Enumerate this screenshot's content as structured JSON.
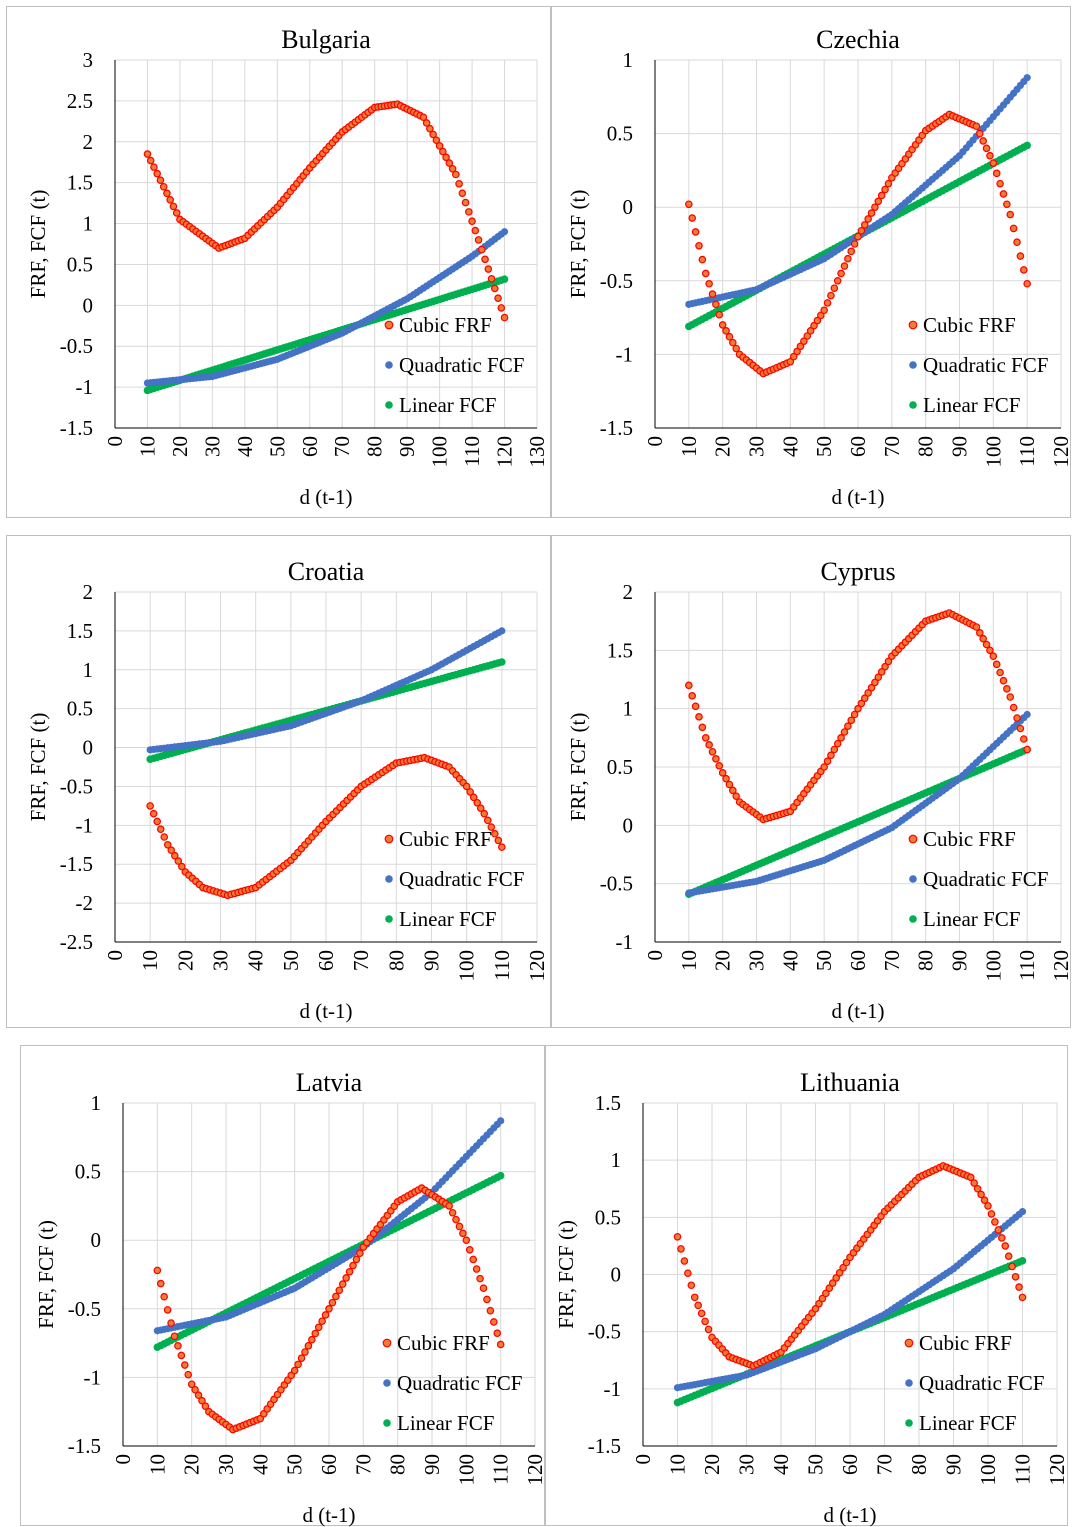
{
  "legend_labels": [
    "Cubic FRF",
    "Quadratic FCF",
    "Linear FCF"
  ],
  "colors": {
    "cubic_outline": "#ff0000",
    "cubic_fill": "#ed7d31",
    "quadratic": "#4472c4",
    "linear": "#00b050",
    "grid": "#d9d9d9",
    "axis": "#000000"
  },
  "chart_data": [
    {
      "type": "scatter",
      "title": "Bulgaria",
      "xlabel": "d (t-1)",
      "ylabel": "FRF, FCF (t)",
      "xlim": [
        0,
        130
      ],
      "ylim": [
        -1.5,
        3
      ],
      "x_ticks": [
        0,
        10,
        20,
        30,
        40,
        50,
        60,
        70,
        80,
        90,
        100,
        110,
        120,
        130
      ],
      "y_ticks": [
        -1.5,
        -1,
        -0.5,
        0,
        0.5,
        1,
        1.5,
        2,
        2.5,
        3
      ],
      "y_tick_labels": [
        "-1.5",
        "-1",
        "-0.5",
        "0",
        "0.5",
        "1",
        "1.5",
        "2",
        "2.5",
        "3"
      ],
      "x_range": [
        10,
        120
      ],
      "legend": "bottom-right",
      "series": [
        {
          "name": "Cubic FRF",
          "x": [
            10,
            20,
            32,
            40,
            50,
            60,
            70,
            80,
            87,
            95,
            105,
            112,
            120
          ],
          "y": [
            1.85,
            1.05,
            0.7,
            0.82,
            1.2,
            1.68,
            2.12,
            2.42,
            2.46,
            2.3,
            1.6,
            0.8,
            -0.15
          ]
        },
        {
          "name": "Quadratic FCF",
          "x": [
            10,
            30,
            50,
            70,
            90,
            110,
            120
          ],
          "y": [
            -0.95,
            -0.87,
            -0.66,
            -0.34,
            0.08,
            0.6,
            0.9
          ]
        },
        {
          "name": "Linear FCF",
          "x": [
            10,
            120
          ],
          "y": [
            -1.04,
            0.32
          ]
        }
      ]
    },
    {
      "type": "scatter",
      "title": "Czechia",
      "xlabel": "d (t-1)",
      "ylabel": "FRF, FCF (t)",
      "xlim": [
        0,
        120
      ],
      "ylim": [
        -1.5,
        1
      ],
      "x_ticks": [
        0,
        10,
        20,
        30,
        40,
        50,
        60,
        70,
        80,
        90,
        100,
        110,
        120
      ],
      "y_ticks": [
        -1.5,
        -1,
        -0.5,
        0,
        0.5,
        1
      ],
      "y_tick_labels": [
        "-1.5",
        "-1",
        "-0.5",
        "0",
        "0.5",
        "1"
      ],
      "x_range": [
        10,
        110
      ],
      "legend": "bottom-right",
      "series": [
        {
          "name": "Cubic FRF",
          "x": [
            10,
            15,
            20,
            25,
            32,
            40,
            50,
            60,
            70,
            80,
            87,
            95,
            100,
            105,
            110
          ],
          "y": [
            0.02,
            -0.45,
            -0.8,
            -1.0,
            -1.13,
            -1.05,
            -0.7,
            -0.2,
            0.2,
            0.52,
            0.63,
            0.55,
            0.3,
            -0.05,
            -0.52
          ]
        },
        {
          "name": "Quadratic FCF",
          "x": [
            10,
            30,
            50,
            70,
            90,
            110
          ],
          "y": [
            -0.66,
            -0.56,
            -0.35,
            -0.05,
            0.35,
            0.88
          ]
        },
        {
          "name": "Linear FCF",
          "x": [
            10,
            110
          ],
          "y": [
            -0.81,
            0.42
          ]
        }
      ]
    },
    {
      "type": "scatter",
      "title": "Croatia",
      "xlabel": "d (t-1)",
      "ylabel": "FRF, FCF (t)",
      "xlim": [
        0,
        120
      ],
      "ylim": [
        -2.5,
        2
      ],
      "x_ticks": [
        0,
        10,
        20,
        30,
        40,
        50,
        60,
        70,
        80,
        90,
        100,
        110,
        120
      ],
      "y_ticks": [
        -2.5,
        -2,
        -1.5,
        -1,
        -0.5,
        0,
        0.5,
        1,
        1.5,
        2
      ],
      "y_tick_labels": [
        "-2.5",
        "-2",
        "-1.5",
        "-1",
        "-0.5",
        "0",
        "0.5",
        "1",
        "1.5",
        "2"
      ],
      "x_range": [
        10,
        110
      ],
      "legend": "bottom-right",
      "series": [
        {
          "name": "Cubic FRF",
          "x": [
            10,
            15,
            20,
            25,
            32,
            40,
            50,
            60,
            70,
            80,
            88,
            95,
            100,
            105,
            110
          ],
          "y": [
            -0.75,
            -1.25,
            -1.6,
            -1.8,
            -1.9,
            -1.8,
            -1.45,
            -0.95,
            -0.5,
            -0.2,
            -0.13,
            -0.25,
            -0.5,
            -0.85,
            -1.28
          ]
        },
        {
          "name": "Quadratic FCF",
          "x": [
            10,
            30,
            50,
            70,
            90,
            110
          ],
          "y": [
            -0.03,
            0.08,
            0.28,
            0.6,
            1.0,
            1.5
          ]
        },
        {
          "name": "Linear FCF",
          "x": [
            10,
            110
          ],
          "y": [
            -0.15,
            1.1
          ]
        }
      ]
    },
    {
      "type": "scatter",
      "title": "Cyprus",
      "xlabel": "d (t-1)",
      "ylabel": "FRF, FCF (t)",
      "xlim": [
        0,
        120
      ],
      "ylim": [
        -1,
        2
      ],
      "x_ticks": [
        0,
        10,
        20,
        30,
        40,
        50,
        60,
        70,
        80,
        90,
        100,
        110,
        120
      ],
      "y_ticks": [
        -1,
        -0.5,
        0,
        0.5,
        1,
        1.5,
        2
      ],
      "y_tick_labels": [
        "-1",
        "-0.5",
        "0",
        "0.5",
        "1",
        "1.5",
        "2"
      ],
      "x_range": [
        10,
        110
      ],
      "legend": "bottom-right",
      "series": [
        {
          "name": "Cubic FRF",
          "x": [
            10,
            15,
            20,
            25,
            32,
            40,
            50,
            60,
            70,
            80,
            87,
            95,
            100,
            105,
            110
          ],
          "y": [
            1.2,
            0.75,
            0.45,
            0.2,
            0.05,
            0.12,
            0.5,
            1.0,
            1.45,
            1.75,
            1.82,
            1.7,
            1.45,
            1.1,
            0.65
          ]
        },
        {
          "name": "Quadratic FCF",
          "x": [
            10,
            30,
            50,
            70,
            90,
            110
          ],
          "y": [
            -0.58,
            -0.48,
            -0.3,
            -0.02,
            0.4,
            0.95
          ]
        },
        {
          "name": "Linear FCF",
          "x": [
            10,
            110
          ],
          "y": [
            -0.59,
            0.65
          ]
        }
      ]
    },
    {
      "type": "scatter",
      "title": "Latvia",
      "xlabel": "d (t-1)",
      "ylabel": "FRF, FCF (t)",
      "xlim": [
        0,
        120
      ],
      "ylim": [
        -1.5,
        1
      ],
      "x_ticks": [
        0,
        10,
        20,
        30,
        40,
        50,
        60,
        70,
        80,
        90,
        100,
        110,
        120
      ],
      "y_ticks": [
        -1.5,
        -1,
        -0.5,
        0,
        0.5,
        1
      ],
      "y_tick_labels": [
        "-1.5",
        "-1",
        "-0.5",
        "0",
        "0.5",
        "1"
      ],
      "x_range": [
        10,
        110
      ],
      "legend": "bottom-right",
      "series": [
        {
          "name": "Cubic FRF",
          "x": [
            10,
            15,
            20,
            25,
            32,
            40,
            50,
            60,
            70,
            80,
            87,
            95,
            100,
            105,
            110
          ],
          "y": [
            -0.22,
            -0.7,
            -1.05,
            -1.25,
            -1.38,
            -1.3,
            -0.95,
            -0.5,
            -0.05,
            0.28,
            0.38,
            0.25,
            0.0,
            -0.35,
            -0.76
          ]
        },
        {
          "name": "Quadratic FCF",
          "x": [
            10,
            30,
            50,
            70,
            90,
            110
          ],
          "y": [
            -0.66,
            -0.56,
            -0.35,
            -0.05,
            0.35,
            0.87
          ]
        },
        {
          "name": "Linear FCF",
          "x": [
            10,
            110
          ],
          "y": [
            -0.78,
            0.47
          ]
        }
      ]
    },
    {
      "type": "scatter",
      "title": "Lithuania",
      "xlabel": "d (t-1)",
      "ylabel": "FRF, FCF (t)",
      "xlim": [
        0,
        120
      ],
      "ylim": [
        -1.5,
        1.5
      ],
      "x_ticks": [
        0,
        10,
        20,
        30,
        40,
        50,
        60,
        70,
        80,
        90,
        100,
        110,
        120
      ],
      "y_ticks": [
        -1.5,
        -1,
        -0.5,
        0,
        0.5,
        1,
        1.5
      ],
      "y_tick_labels": [
        "-1.5",
        "-1",
        "-0.5",
        "0",
        "0.5",
        "1",
        "1.5"
      ],
      "x_range": [
        10,
        110
      ],
      "legend": "bottom-right",
      "series": [
        {
          "name": "Cubic FRF",
          "x": [
            10,
            15,
            20,
            25,
            32,
            40,
            50,
            60,
            70,
            80,
            87,
            95,
            100,
            105,
            110
          ],
          "y": [
            0.33,
            -0.2,
            -0.55,
            -0.72,
            -0.8,
            -0.68,
            -0.3,
            0.15,
            0.55,
            0.85,
            0.95,
            0.85,
            0.6,
            0.25,
            -0.2
          ]
        },
        {
          "name": "Quadratic FCF",
          "x": [
            10,
            30,
            50,
            70,
            90,
            110
          ],
          "y": [
            -0.99,
            -0.88,
            -0.65,
            -0.35,
            0.05,
            0.55
          ]
        },
        {
          "name": "Linear FCF",
          "x": [
            10,
            110
          ],
          "y": [
            -1.12,
            0.12
          ]
        }
      ]
    }
  ]
}
